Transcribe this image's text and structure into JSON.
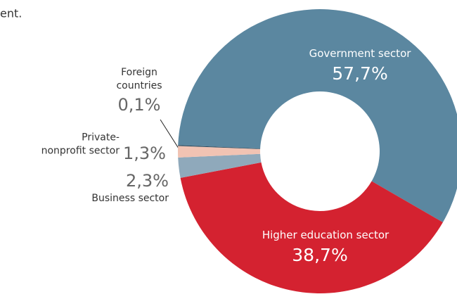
{
  "chart_data": {
    "type": "donut",
    "subtitle": "ent.",
    "categories": [
      "Government sector",
      "Higher education sector",
      "Business sector",
      "Private-\nnonprofit sector",
      "Foreign\ncountries"
    ],
    "values": [
      57.7,
      38.7,
      2.3,
      1.3,
      0.1
    ],
    "value_labels": [
      "57,7%",
      "38,7%",
      "2,3%",
      "1,3%",
      "0,1%"
    ],
    "colors": [
      "#5b87a0",
      "#d42230",
      "#8fa9bb",
      "#f1c3b3",
      "#2f4a5c"
    ]
  }
}
